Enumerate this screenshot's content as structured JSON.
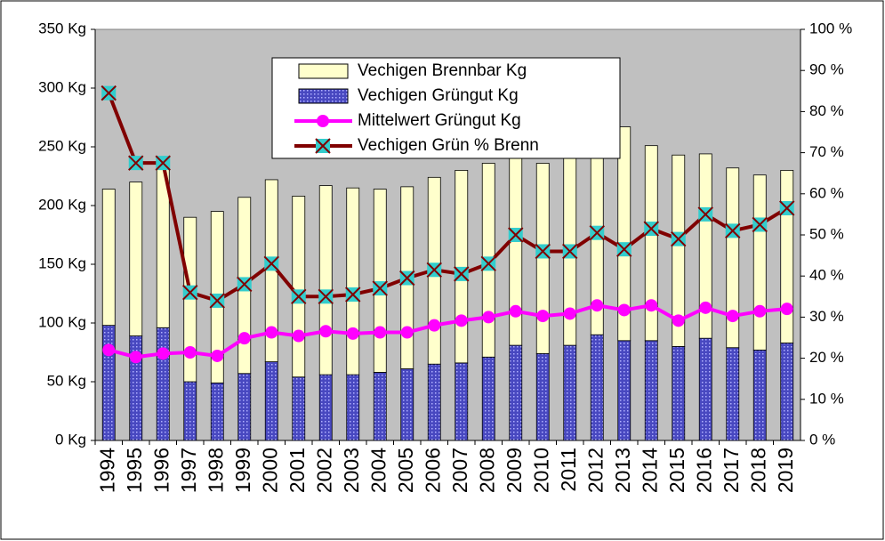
{
  "chart_data": {
    "type": "bar",
    "stacked": true,
    "legend": "top-center",
    "categories": [
      "1994",
      "1995",
      "1996",
      "1997",
      "1998",
      "1999",
      "2000",
      "2001",
      "2002",
      "2003",
      "2004",
      "2005",
      "2006",
      "2007",
      "2008",
      "2009",
      "2010",
      "2011",
      "2012",
      "2013",
      "2014",
      "2015",
      "2016",
      "2017",
      "2018",
      "2019"
    ],
    "series": [
      {
        "name": "Vechigen Brennbar Kg",
        "type": "bar",
        "color": "#ffffcc",
        "values": [
          116,
          131,
          142,
          140,
          146,
          150,
          155,
          154,
          161,
          159,
          156,
          155,
          159,
          164,
          165,
          162,
          162,
          176,
          178,
          182,
          166,
          163,
          157,
          153,
          149,
          147
        ]
      },
      {
        "name": "Vechigen Grüngut Kg",
        "type": "bar",
        "color": "#4848c0",
        "values": [
          98,
          89,
          96,
          50,
          49,
          57,
          67,
          54,
          56,
          56,
          58,
          61,
          65,
          66,
          71,
          81,
          74,
          81,
          90,
          85,
          85,
          80,
          87,
          79,
          77,
          83
        ]
      },
      {
        "name": "Mittelwert Grüngut Kg",
        "type": "line",
        "color": "#ff00ff",
        "marker": "circle",
        "values": [
          77,
          71,
          74,
          75,
          72,
          87,
          92,
          89,
          93,
          91,
          92,
          92,
          98,
          102,
          105,
          110,
          106,
          108,
          115,
          111,
          115,
          102,
          113,
          106,
          110,
          112
        ]
      },
      {
        "name": "Vechigen Grün % Brenn",
        "type": "line",
        "axis": "y2",
        "color": "#800000",
        "marker": "x",
        "marker_color": "#33cccc",
        "values": [
          84.5,
          67.5,
          67.5,
          36,
          34,
          38,
          43,
          35,
          35,
          35.5,
          37,
          39.5,
          41.5,
          40.5,
          43,
          50,
          46,
          46,
          50.5,
          46.5,
          51.5,
          49,
          55,
          51,
          52.5,
          56.5
        ]
      }
    ],
    "ylim": [
      0,
      350
    ],
    "yticks": [
      {
        "value": 0,
        "label": "0 Kg"
      },
      {
        "value": 50,
        "label": "50 Kg"
      },
      {
        "value": 100,
        "label": "100 Kg"
      },
      {
        "value": 150,
        "label": "150 Kg"
      },
      {
        "value": 200,
        "label": "200 Kg"
      },
      {
        "value": 250,
        "label": "250 Kg"
      },
      {
        "value": 300,
        "label": "300 Kg"
      },
      {
        "value": 350,
        "label": "350 Kg"
      }
    ],
    "y2lim": [
      0,
      100
    ],
    "y2ticks": [
      {
        "value": 0,
        "label": "0 %"
      },
      {
        "value": 10,
        "label": "10 %"
      },
      {
        "value": 20,
        "label": "20 %"
      },
      {
        "value": 30,
        "label": "30 %"
      },
      {
        "value": 40,
        "label": "40 %"
      },
      {
        "value": 50,
        "label": "50 %"
      },
      {
        "value": 60,
        "label": "60 %"
      },
      {
        "value": 70,
        "label": "70 %"
      },
      {
        "value": 80,
        "label": "80 %"
      },
      {
        "value": 90,
        "label": "90 %"
      },
      {
        "value": 100,
        "label": "100 %"
      }
    ],
    "plot_background": "#c0c0c0"
  }
}
